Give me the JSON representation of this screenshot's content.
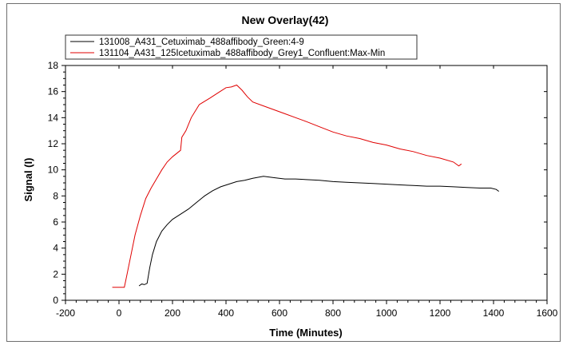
{
  "chart_data": {
    "type": "line",
    "title": "New Overlay(42)",
    "xlabel": "Time (Minutes)",
    "ylabel": "Signal (I)",
    "xlim": [
      -200,
      1600
    ],
    "ylim": [
      0,
      18
    ],
    "xticks": [
      -200,
      0,
      200,
      400,
      600,
      800,
      1000,
      1200,
      1400,
      1600
    ],
    "yticks": [
      0,
      2,
      4,
      6,
      8,
      10,
      12,
      14,
      16,
      18
    ],
    "grid": false,
    "legend_position": "top-left",
    "series": [
      {
        "name": "131008_A431_Cetuximab_488affibody_Green:4-9",
        "color": "#000000",
        "points": [
          [
            75,
            1.1
          ],
          [
            85,
            1.25
          ],
          [
            95,
            1.2
          ],
          [
            105,
            1.3
          ],
          [
            115,
            2.5
          ],
          [
            125,
            3.5
          ],
          [
            140,
            4.5
          ],
          [
            160,
            5.3
          ],
          [
            180,
            5.8
          ],
          [
            200,
            6.2
          ],
          [
            230,
            6.6
          ],
          [
            260,
            7.0
          ],
          [
            290,
            7.5
          ],
          [
            320,
            8.0
          ],
          [
            350,
            8.4
          ],
          [
            380,
            8.7
          ],
          [
            410,
            8.9
          ],
          [
            440,
            9.1
          ],
          [
            470,
            9.2
          ],
          [
            500,
            9.35
          ],
          [
            540,
            9.5
          ],
          [
            580,
            9.4
          ],
          [
            620,
            9.3
          ],
          [
            660,
            9.3
          ],
          [
            700,
            9.25
          ],
          [
            750,
            9.2
          ],
          [
            800,
            9.1
          ],
          [
            850,
            9.05
          ],
          [
            900,
            9.0
          ],
          [
            950,
            8.95
          ],
          [
            1000,
            8.9
          ],
          [
            1050,
            8.85
          ],
          [
            1100,
            8.8
          ],
          [
            1150,
            8.75
          ],
          [
            1200,
            8.75
          ],
          [
            1250,
            8.7
          ],
          [
            1300,
            8.65
          ],
          [
            1350,
            8.6
          ],
          [
            1390,
            8.6
          ],
          [
            1410,
            8.5
          ],
          [
            1420,
            8.35
          ]
        ]
      },
      {
        "name": "131104_A431_125Icetuximab_488affibody_Grey1_Confluent:Max-Min",
        "color": "#e00000",
        "points": [
          [
            -25,
            1.0
          ],
          [
            0,
            1.0
          ],
          [
            20,
            1.0
          ],
          [
            30,
            2.0
          ],
          [
            45,
            3.5
          ],
          [
            60,
            5.0
          ],
          [
            80,
            6.5
          ],
          [
            100,
            7.8
          ],
          [
            120,
            8.6
          ],
          [
            140,
            9.3
          ],
          [
            160,
            10.0
          ],
          [
            180,
            10.6
          ],
          [
            200,
            11.0
          ],
          [
            230,
            11.5
          ],
          [
            235,
            12.5
          ],
          [
            250,
            13.0
          ],
          [
            270,
            14.0
          ],
          [
            300,
            15.0
          ],
          [
            340,
            15.5
          ],
          [
            370,
            15.9
          ],
          [
            400,
            16.3
          ],
          [
            420,
            16.35
          ],
          [
            440,
            16.5
          ],
          [
            460,
            16.1
          ],
          [
            480,
            15.6
          ],
          [
            500,
            15.2
          ],
          [
            540,
            14.9
          ],
          [
            580,
            14.6
          ],
          [
            620,
            14.3
          ],
          [
            660,
            14.0
          ],
          [
            700,
            13.7
          ],
          [
            750,
            13.3
          ],
          [
            800,
            12.9
          ],
          [
            850,
            12.6
          ],
          [
            900,
            12.4
          ],
          [
            950,
            12.1
          ],
          [
            1000,
            11.9
          ],
          [
            1050,
            11.6
          ],
          [
            1100,
            11.4
          ],
          [
            1150,
            11.1
          ],
          [
            1200,
            10.9
          ],
          [
            1250,
            10.6
          ],
          [
            1270,
            10.3
          ],
          [
            1280,
            10.45
          ]
        ]
      }
    ]
  }
}
